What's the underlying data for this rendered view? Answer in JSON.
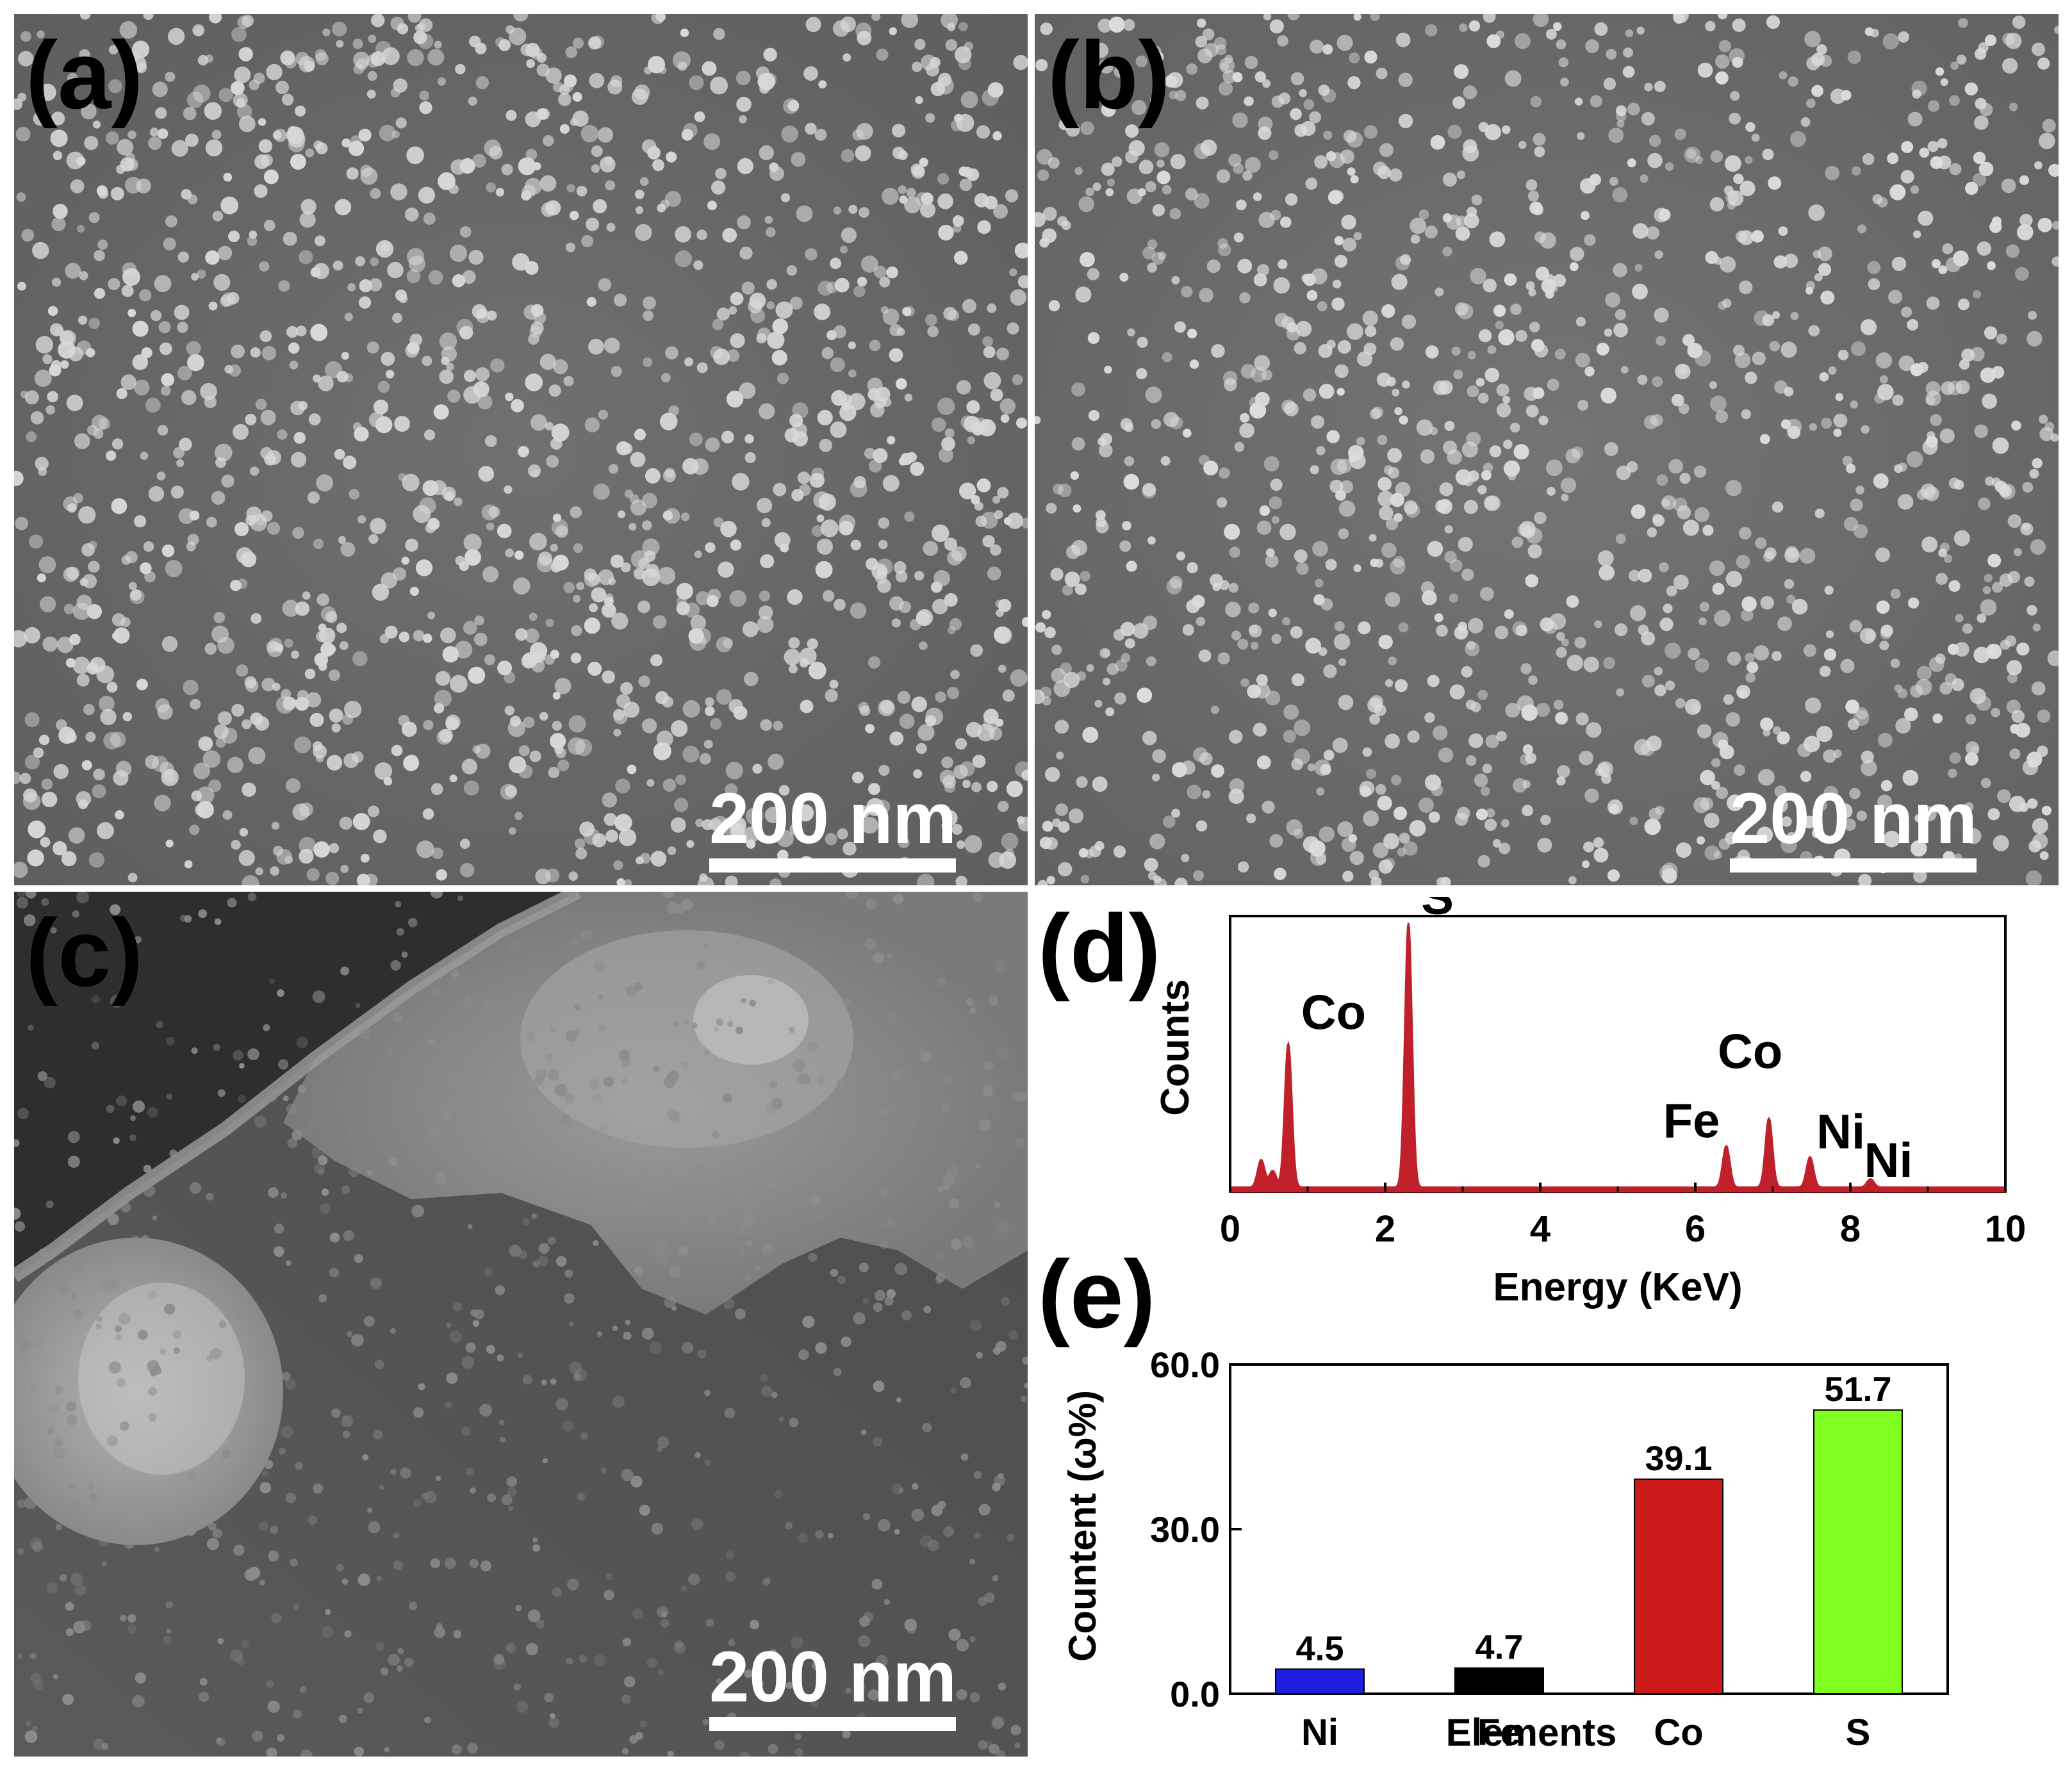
{
  "panels": {
    "a": {
      "label": "(a)",
      "scale_bar": "200 nm"
    },
    "b": {
      "label": "(b)",
      "scale_bar": "200 nm"
    },
    "c": {
      "label": "(c)",
      "scale_bar": "200 nm"
    },
    "d": {
      "label": "(d)"
    },
    "e": {
      "label": "(e)"
    }
  },
  "chart_data": [
    {
      "panel": "d",
      "type": "line",
      "xlabel": "Energy (KeV)",
      "ylabel": "Counts",
      "xlim": [
        0,
        10
      ],
      "ylim": [
        0,
        100
      ],
      "xticks": [
        "0",
        "2",
        "4",
        "6",
        "8",
        "10"
      ],
      "y_tick_labels_shown": false,
      "grid": false,
      "line_color": "#c0202a",
      "fill": true,
      "peaks": [
        {
          "x": 0.4,
          "y": 10
        },
        {
          "x": 0.55,
          "y": 6
        },
        {
          "x": 0.75,
          "y": 52,
          "label": "Co"
        },
        {
          "x": 2.3,
          "y": 96,
          "label": "S"
        },
        {
          "x": 6.4,
          "y": 15,
          "label": "Fe"
        },
        {
          "x": 6.95,
          "y": 25,
          "label": "Co"
        },
        {
          "x": 7.48,
          "y": 11,
          "label": "Ni"
        },
        {
          "x": 8.26,
          "y": 3,
          "label": "Ni"
        }
      ]
    },
    {
      "panel": "e",
      "type": "bar",
      "categories": [
        "Ni",
        "Fe",
        "Co",
        "S"
      ],
      "values": [
        4.5,
        4.7,
        39.1,
        51.7
      ],
      "value_labels": [
        "4.5",
        "4.7",
        "39.1",
        "51.7"
      ],
      "colors": [
        "#1f1fe0",
        "#000000",
        "#cc1a1a",
        "#80ff20"
      ],
      "xlabel": "Elements",
      "ylabel": "Countent (ω%)",
      "ylim": [
        0,
        60
      ],
      "yticks": [
        "0.0",
        "30.0",
        "60.0"
      ],
      "grid": false
    }
  ]
}
